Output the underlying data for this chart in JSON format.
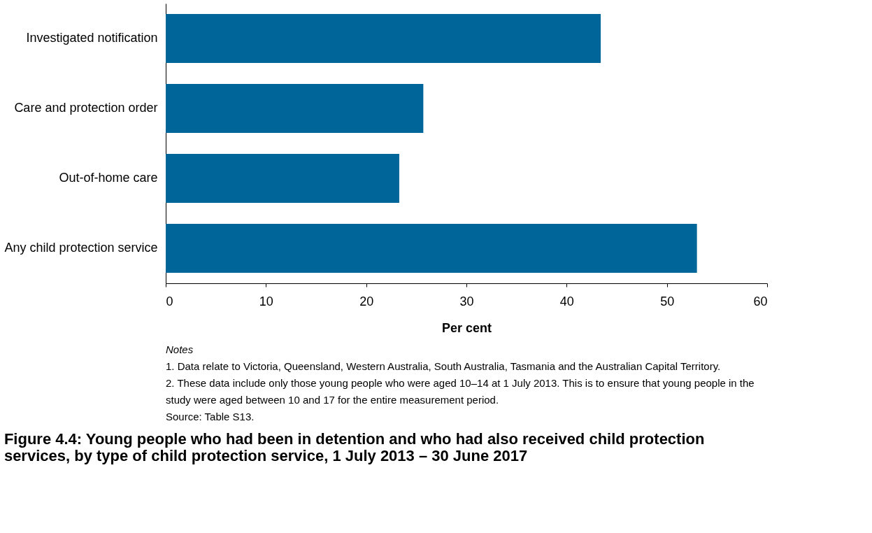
{
  "chart_data": {
    "type": "bar",
    "orientation": "horizontal",
    "title": "Figure 4.4: Young people who had been in detention and who had also received child protection services, by type of child protection service, 1 July 2013 – 30 June 2017",
    "categories": [
      "Investigated notification",
      "Care and protection order",
      "Out-of-home care",
      "Any child protection service"
    ],
    "values": [
      43.4,
      25.7,
      23.3,
      53.0
    ],
    "color": "#006699",
    "xlabel": "Per cent",
    "xlim": [
      0,
      60
    ],
    "xticks": [
      0,
      10,
      20,
      30,
      40,
      50,
      60
    ],
    "grid": false,
    "annotations": [
      "Notes",
      "1. Data relate to Victoria, Queensland, Western Australia, South Australia, Tasmania and the Australian Capital Territory.",
      "2. These data include only those young people who were aged 10–14 at 1 July 2013. This is to ensure that young people in the study were aged between 10 and 17 for the entire measurement period.",
      "Source: Table S13."
    ]
  }
}
